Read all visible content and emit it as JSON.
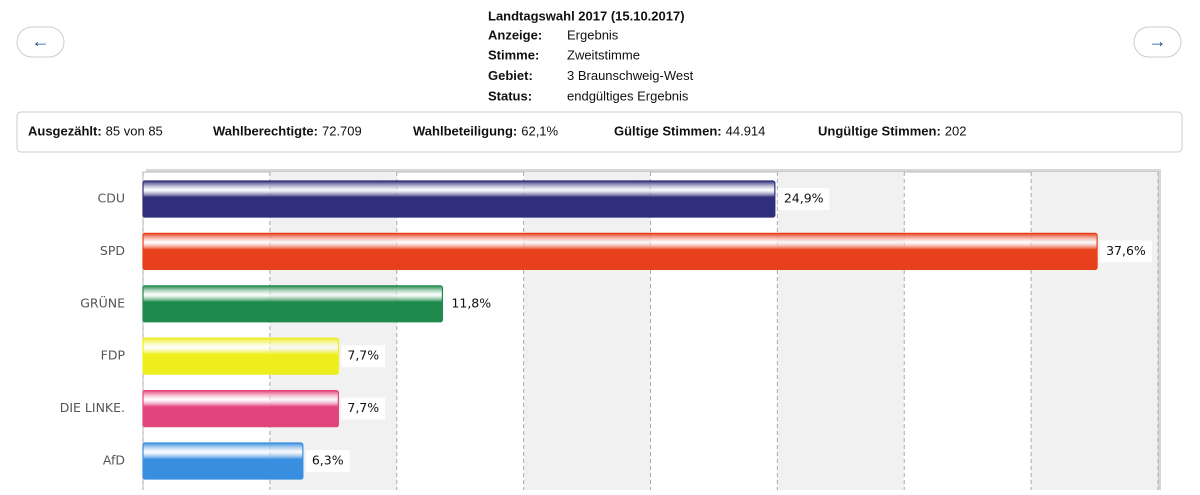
{
  "nav": {
    "prev": "←",
    "next": "→"
  },
  "header": {
    "title": "Landtagswahl 2017 (15.10.2017)",
    "rows": [
      [
        "Anzeige:",
        "Ergebnis"
      ],
      [
        "Stimme:",
        "Zweitstimme"
      ],
      [
        "Gebiet:",
        "3 Braunschweig-West"
      ],
      [
        "Status:",
        "endgültiges Ergebnis"
      ]
    ]
  },
  "stats": [
    [
      "Ausgezählt:",
      "85 von 85"
    ],
    [
      "Wahlberechtigte:",
      "72.709"
    ],
    [
      "Wahlbeteiligung:",
      "62,1%"
    ],
    [
      "Gültige Stimmen:",
      "44.914"
    ],
    [
      "Ungültige Stimmen:",
      "202"
    ]
  ],
  "chart_data": {
    "type": "hbar",
    "categories": [
      "CDU",
      "SPD",
      "GRÜNE",
      "FDP",
      "DIE LINKE.",
      "AfD"
    ],
    "values": [
      24.9,
      37.6,
      11.8,
      7.7,
      7.7,
      6.3
    ],
    "value_labels": [
      "24,9%",
      "37,6%",
      "11,8%",
      "7,7%",
      "7,7%",
      "6,3%"
    ],
    "colors": [
      "#2f2f7c",
      "#e8401c",
      "#1e8a4c",
      "#eeee1e",
      "#e2457e",
      "#3a8ee0"
    ],
    "xlim": [
      0,
      40
    ],
    "xticks": [
      0,
      5,
      10,
      15,
      20,
      25,
      30,
      35,
      40
    ],
    "grid": true
  }
}
